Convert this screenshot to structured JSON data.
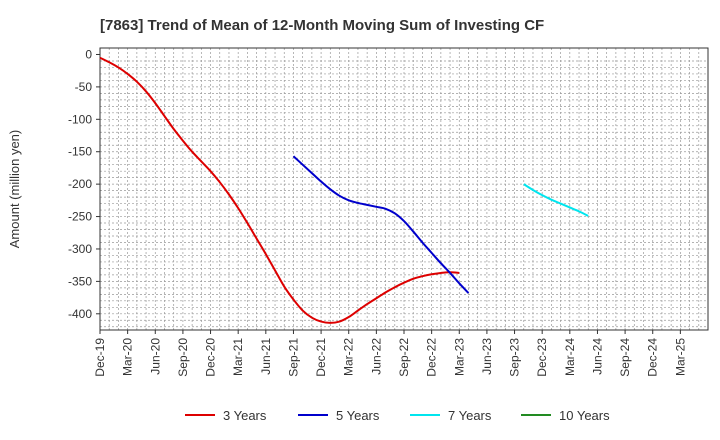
{
  "chart_data": {
    "type": "line",
    "title": "[7863]  Trend of Mean of 12-Month Moving Sum of Investing CF",
    "xlabel": "",
    "ylabel": "Amount (million yen)",
    "ylim": [
      -425,
      10
    ],
    "yticks": [
      0,
      -50,
      -100,
      -150,
      -200,
      -250,
      -300,
      -350,
      -400
    ],
    "x_range": [
      0,
      66
    ],
    "x_tick_labels": [
      "Dec-19",
      "Mar-20",
      "Jun-20",
      "Sep-20",
      "Dec-20",
      "Mar-21",
      "Jun-21",
      "Sep-21",
      "Dec-21",
      "Mar-22",
      "Jun-22",
      "Sep-22",
      "Dec-22",
      "Mar-23",
      "Jun-23",
      "Sep-23",
      "Dec-23",
      "Mar-24",
      "Jun-24",
      "Sep-24",
      "Dec-24",
      "Mar-25"
    ],
    "x_tick_step": 3,
    "grid": true,
    "legend_position": "bottom",
    "series": [
      {
        "name": "3 Years",
        "color": "#dd0000",
        "start_index": 0,
        "values": [
          -5,
          -12,
          -20,
          -30,
          -42,
          -57,
          -75,
          -95,
          -115,
          -133,
          -150,
          -165,
          -180,
          -197,
          -216,
          -237,
          -260,
          -284,
          -308,
          -333,
          -358,
          -378,
          -395,
          -406,
          -412,
          -414,
          -412,
          -405,
          -395,
          -385,
          -376,
          -367,
          -359,
          -352,
          -346,
          -342,
          -339,
          -337,
          -336,
          -337
        ]
      },
      {
        "name": "5 Years",
        "color": "#0000cc",
        "start_index": 21,
        "values": [
          -157,
          -170,
          -183,
          -196,
          -208,
          -218,
          -225,
          -229,
          -232,
          -235,
          -238,
          -245,
          -257,
          -273,
          -290,
          -306,
          -322,
          -337,
          -353,
          -368
        ]
      },
      {
        "name": "7 Years",
        "color": "#00e5ee",
        "start_index": 46,
        "values": [
          -200,
          -209,
          -217,
          -224,
          -230,
          -236,
          -242,
          -249
        ]
      },
      {
        "name": "10 Years",
        "color": "#228b22",
        "start_index": 0,
        "values": []
      }
    ]
  }
}
